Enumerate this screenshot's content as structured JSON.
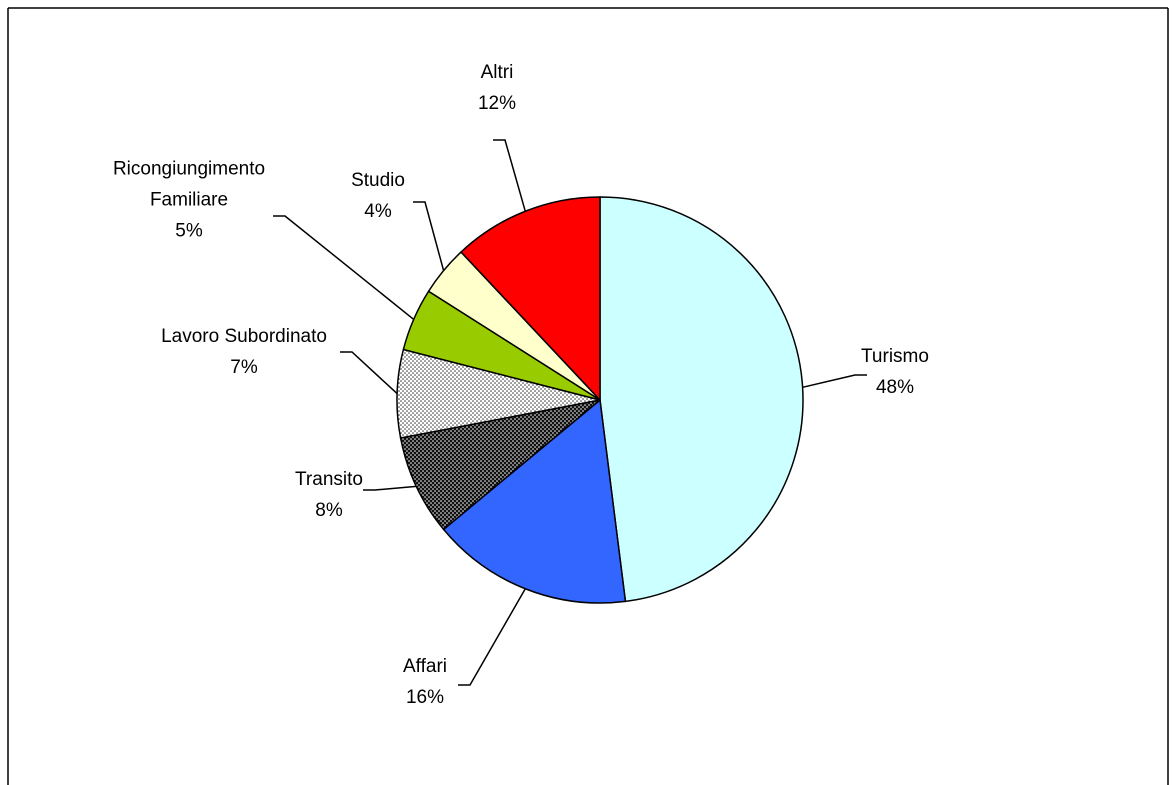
{
  "chart_data": {
    "type": "pie",
    "title": "",
    "slices": [
      {
        "label_lines": [
          "Turismo"
        ],
        "percent_label": "48%",
        "value": 48,
        "color": "#ccffff",
        "pattern": ""
      },
      {
        "label_lines": [
          "Affari"
        ],
        "percent_label": "16%",
        "value": 16,
        "color": "#3366ff",
        "pattern": ""
      },
      {
        "label_lines": [
          "Transito"
        ],
        "percent_label": "8%",
        "value": 8,
        "color": "#111111",
        "pattern": "dots-light"
      },
      {
        "label_lines": [
          "Lavoro Subordinato"
        ],
        "percent_label": "7%",
        "value": 7,
        "color": "#ffffff",
        "pattern": "dots-dark"
      },
      {
        "label_lines": [
          "Ricongiungimento",
          "Familiare"
        ],
        "percent_label": "5%",
        "value": 5,
        "color": "#99cc00",
        "pattern": ""
      },
      {
        "label_lines": [
          "Studio"
        ],
        "percent_label": "4%",
        "value": 4,
        "color": "#ffffcc",
        "pattern": ""
      },
      {
        "label_lines": [
          "Altri"
        ],
        "percent_label": "12%",
        "value": 12,
        "color": "#ff0000",
        "pattern": ""
      }
    ],
    "start": "12 o'clock",
    "direction": "clockwise",
    "legend": "none",
    "data_labels": "outside with leader lines"
  }
}
